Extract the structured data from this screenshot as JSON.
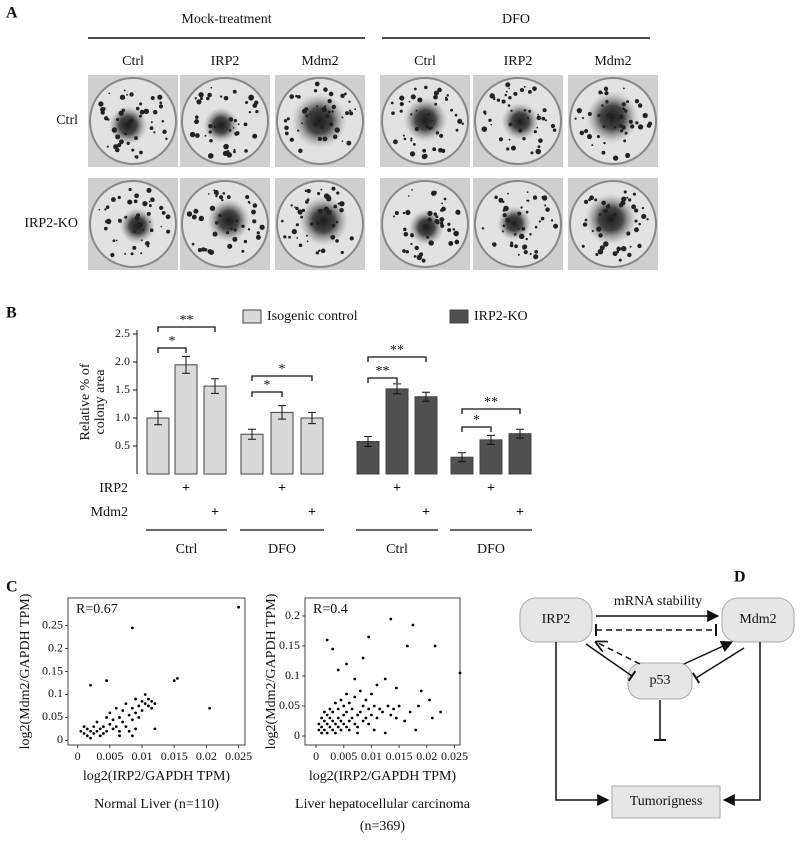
{
  "panel_labels": [
    "A",
    "B",
    "C",
    "D"
  ],
  "panel_a": {
    "groups": [
      "Mock-treatment",
      "DFO"
    ],
    "columns": [
      "Ctrl",
      "IRP2",
      "Mdm2",
      "Ctrl",
      "IRP2",
      "Mdm2"
    ],
    "rows": [
      "Ctrl",
      "IRP2-KO"
    ]
  },
  "chart_data": [
    {
      "type": "bar",
      "y_label": [
        "Relative % of",
        "colony area"
      ],
      "categories": [
        null,
        null,
        null,
        null,
        null,
        null,
        null,
        null,
        null,
        null,
        null,
        null
      ],
      "series": [
        {
          "name": "Isogenic control",
          "color": "#d9d9d9",
          "values": [
            1.0,
            1.95,
            1.57,
            0.71,
            1.1,
            1.0,
            null,
            null,
            null,
            null,
            null,
            null
          ],
          "error": [
            0.12,
            0.15,
            0.13,
            0.09,
            0.12,
            0.1,
            null,
            null,
            null,
            null,
            null,
            null
          ]
        },
        {
          "name": "IRP2-KO",
          "color": "#505050",
          "values": [
            null,
            null,
            null,
            null,
            null,
            null,
            0.58,
            1.52,
            1.38,
            0.3,
            0.61,
            0.72
          ],
          "error": [
            null,
            null,
            null,
            null,
            null,
            null,
            0.09,
            0.09,
            0.08,
            0.08,
            0.08,
            0.08
          ]
        }
      ],
      "ylim": [
        0,
        2.5
      ],
      "yticks": [
        0.5,
        {
          "value": 1,
          "label": "1.0"
        },
        1.5,
        {
          "value": 2,
          "label": "2.0"
        },
        2.5
      ],
      "significance": [
        "*",
        "**",
        "*",
        "*",
        "**",
        "**",
        "*",
        "**"
      ],
      "rows": [
        {
          "label": "IRP2",
          "marks": [
            null,
            "+",
            null,
            null,
            "+",
            null,
            null,
            "+",
            null,
            null,
            "+",
            null
          ]
        },
        {
          "label": "Mdm2",
          "marks": [
            null,
            null,
            "+",
            null,
            null,
            "+",
            null,
            null,
            "+",
            null,
            null,
            "+"
          ]
        }
      ],
      "groups": [
        "Ctrl",
        "DFO",
        "Ctrl",
        "DFO"
      ]
    },
    {
      "type": "scatter",
      "annotation": "R=0.67",
      "x_label": "log2(IRP2/GAPDH TPM)",
      "y_label": "log2(Mdm2/GAPDH TPM)",
      "caption": [
        "Normal Liver (n=110)"
      ],
      "color": "#000000",
      "xlim": [
        -0.0015,
        0.026
      ],
      "ylim": [
        -0.01,
        0.31
      ],
      "xticks": [
        0,
        0.005,
        0.01,
        0.015,
        0.02,
        0.025
      ],
      "yticks": [
        0,
        0.05,
        0.1,
        0.15,
        0.2,
        0.25
      ],
      "x": [
        0.0005,
        0.001,
        0.001,
        0.0015,
        0.0015,
        0.002,
        0.002,
        0.0025,
        0.0025,
        0.003,
        0.003,
        0.0035,
        0.0035,
        0.004,
        0.004,
        0.0045,
        0.0045,
        0.005,
        0.005,
        0.0055,
        0.0055,
        0.006,
        0.006,
        0.0065,
        0.0065,
        0.007,
        0.007,
        0.0075,
        0.0075,
        0.008,
        0.008,
        0.0085,
        0.0085,
        0.009,
        0.009,
        0.0095,
        0.0095,
        0.01,
        0.01,
        0.0105,
        0.0105,
        0.011,
        0.011,
        0.0115,
        0.0115,
        0.012,
        0.012,
        0.002,
        0.0045,
        0.0085,
        0.015,
        0.0155,
        0.0205,
        0.025,
        0.0085,
        0.009,
        0.0065
      ],
      "values": [
        0.02,
        0.015,
        0.03,
        0.01,
        0.025,
        0.02,
        0.005,
        0.03,
        0.015,
        0.02,
        0.04,
        0.01,
        0.025,
        0.03,
        0.015,
        0.05,
        0.02,
        0.035,
        0.06,
        0.025,
        0.045,
        0.07,
        0.03,
        0.05,
        0.02,
        0.065,
        0.04,
        0.08,
        0.03,
        0.055,
        0.02,
        0.07,
        0.045,
        0.06,
        0.09,
        0.075,
        0.05,
        0.085,
        0.065,
        0.08,
        0.1,
        0.075,
        0.09,
        0.085,
        0.07,
        0.08,
        0.025,
        0.12,
        0.13,
        0.245,
        0.13,
        0.135,
        0.07,
        0.29,
        0.01,
        0.025,
        0.01
      ]
    },
    {
      "type": "scatter",
      "annotation": "R=0.4",
      "x_label": "log2(IRP2/GAPDH TPM)",
      "y_label": "log2(Mdm2/GAPDH TPM)",
      "caption": [
        "Liver hepatocellular carcinoma",
        "(n=369)"
      ],
      "color": "#000000",
      "xlim": [
        -0.002,
        0.026
      ],
      "ylim": [
        -0.015,
        0.23
      ],
      "xticks": [
        0,
        0.005,
        0.01,
        0.015,
        0.02,
        0.025
      ],
      "yticks": [
        0,
        0.05,
        0.1,
        0.15,
        0.2
      ],
      "x": [
        0.0005,
        0.0005,
        0.001,
        0.001,
        0.001,
        0.0015,
        0.0015,
        0.0015,
        0.002,
        0.002,
        0.002,
        0.0025,
        0.0025,
        0.0025,
        0.003,
        0.003,
        0.003,
        0.0035,
        0.0035,
        0.0035,
        0.004,
        0.004,
        0.004,
        0.0045,
        0.0045,
        0.0045,
        0.005,
        0.005,
        0.005,
        0.0055,
        0.0055,
        0.0055,
        0.006,
        0.006,
        0.006,
        0.0065,
        0.0065,
        0.007,
        0.007,
        0.0075,
        0.0075,
        0.008,
        0.008,
        0.0085,
        0.0085,
        0.009,
        0.009,
        0.0095,
        0.0095,
        0.01,
        0.01,
        0.0105,
        0.011,
        0.011,
        0.0115,
        0.012,
        0.0125,
        0.013,
        0.0135,
        0.014,
        0.0145,
        0.015,
        0.016,
        0.017,
        0.018,
        0.0185,
        0.019,
        0.021,
        0.002,
        0.004,
        0.003,
        0.0055,
        0.007,
        0.0085,
        0.0095,
        0.0135,
        0.0145,
        0.0165,
        0.0175,
        0.0205,
        0.0215,
        0.0225,
        0.026,
        0.0125,
        0.0075,
        0.0105
      ],
      "values": [
        0.01,
        0.02,
        0.005,
        0.03,
        0.015,
        0.025,
        0.04,
        0.01,
        0.02,
        0.035,
        0.005,
        0.015,
        0.03,
        0.045,
        0.01,
        0.025,
        0.04,
        0.02,
        0.005,
        0.055,
        0.015,
        0.03,
        0.045,
        0.025,
        0.01,
        0.06,
        0.02,
        0.035,
        0.05,
        0.015,
        0.04,
        0.07,
        0.025,
        0.01,
        0.055,
        0.03,
        0.045,
        0.02,
        0.065,
        0.035,
        0.015,
        0.04,
        0.075,
        0.025,
        0.05,
        0.03,
        0.06,
        0.045,
        0.02,
        0.035,
        0.07,
        0.05,
        0.03,
        0.085,
        0.045,
        0.04,
        0.095,
        0.05,
        0.035,
        0.045,
        0.03,
        0.05,
        0.025,
        0.04,
        0.01,
        0.05,
        0.075,
        0.03,
        0.16,
        0.11,
        0.145,
        0.12,
        0.095,
        0.13,
        0.165,
        0.195,
        0.08,
        0.15,
        0.185,
        0.06,
        0.15,
        0.04,
        0.105,
        0.005,
        0.005,
        0.01
      ]
    }
  ],
  "panel_d": {
    "nodes": [
      "IRP2",
      "Mdm2",
      "p53",
      "Tumorigness"
    ],
    "edge_label": "mRNA stability"
  }
}
